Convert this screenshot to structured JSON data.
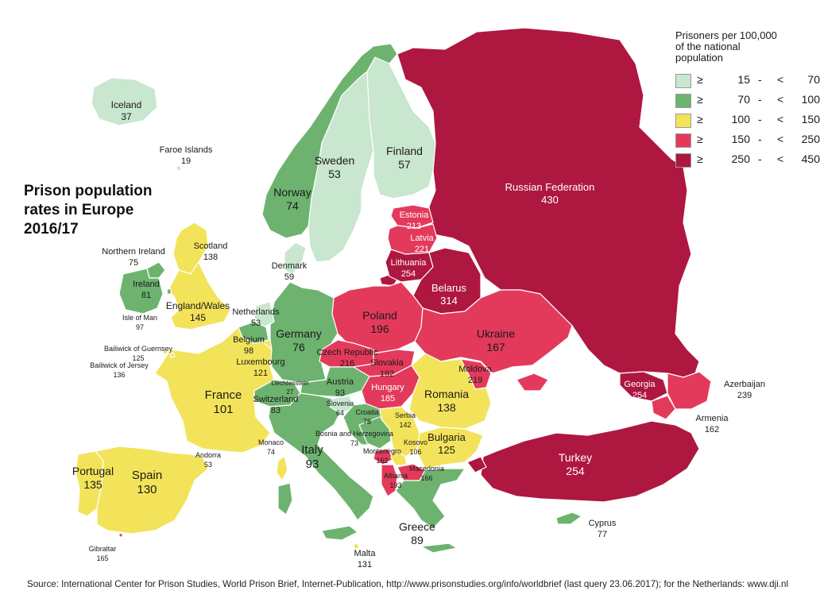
{
  "title_lines": [
    "Prison population",
    "rates in Europe",
    "2016/17"
  ],
  "legend": {
    "heading_lines": [
      "Prisoners per 100,000",
      "of the national",
      "population"
    ],
    "classes": [
      {
        "ge": "≥",
        "low": "15",
        "dash": "-",
        "lt": "<",
        "high": "70",
        "color": "#c9e6cf"
      },
      {
        "ge": "≥",
        "low": "70",
        "dash": "-",
        "lt": "<",
        "high": "100",
        "color": "#6db36f"
      },
      {
        "ge": "≥",
        "low": "100",
        "dash": "-",
        "lt": "<",
        "high": "150",
        "color": "#f3e35a"
      },
      {
        "ge": "≥",
        "low": "150",
        "dash": "-",
        "lt": "<",
        "high": "250",
        "color": "#e33a5b"
      },
      {
        "ge": "≥",
        "low": "250",
        "dash": "-",
        "lt": "<",
        "high": "450",
        "color": "#ae1740"
      }
    ]
  },
  "colors": {
    "c1": "#c9e6cf",
    "c2": "#6db36f",
    "c3": "#f3e35a",
    "c4": "#e33a5b",
    "c5": "#ae1740",
    "water": "#ffffff",
    "border": "#ffffff"
  },
  "countries": [
    {
      "name": "Iceland",
      "value": "37",
      "class": 1
    },
    {
      "name": "Faroe Islands",
      "value": "19",
      "class": 1
    },
    {
      "name": "Sweden",
      "value": "53",
      "class": 1
    },
    {
      "name": "Finland",
      "value": "57",
      "class": 1
    },
    {
      "name": "Norway",
      "value": "74",
      "class": 2
    },
    {
      "name": "Denmark",
      "value": "59",
      "class": 1
    },
    {
      "name": "Russian Federation",
      "value": "430",
      "class": 5
    },
    {
      "name": "Estonia",
      "value": "213",
      "class": 4
    },
    {
      "name": "Latvia",
      "value": "221",
      "class": 4
    },
    {
      "name": "Lithuania",
      "value": "254",
      "class": 5
    },
    {
      "name": "Belarus",
      "value": "314",
      "class": 5
    },
    {
      "name": "Scotland",
      "value": "138",
      "class": 3
    },
    {
      "name": "Northern Ireland",
      "value": "75",
      "class": 2
    },
    {
      "name": "Ireland",
      "value": "81",
      "class": 2
    },
    {
      "name": "England/Wales",
      "value": "145",
      "class": 3
    },
    {
      "name": "Isle of Man",
      "value": "97",
      "class": 2
    },
    {
      "name": "Netherlands",
      "value": "53",
      "class": 1
    },
    {
      "name": "Germany",
      "value": "76",
      "class": 2
    },
    {
      "name": "Poland",
      "value": "196",
      "class": 4
    },
    {
      "name": "Ukraine",
      "value": "167",
      "class": 4
    },
    {
      "name": "Belgium",
      "value": "98",
      "class": 2
    },
    {
      "name": "Bailiwick of Guernsey",
      "value": "125",
      "class": 3
    },
    {
      "name": "Bailiwick of Jersey",
      "value": "136",
      "class": 3
    },
    {
      "name": "Luxembourg",
      "value": "121",
      "class": 3
    },
    {
      "name": "Czech Republic",
      "value": "216",
      "class": 4
    },
    {
      "name": "Slovakia",
      "value": "192",
      "class": 4
    },
    {
      "name": "Moldova",
      "value": "219",
      "class": 4
    },
    {
      "name": "France",
      "value": "101",
      "class": 3
    },
    {
      "name": "Liechtenstein",
      "value": "27",
      "class": 1
    },
    {
      "name": "Austria",
      "value": "93",
      "class": 2
    },
    {
      "name": "Hungary",
      "value": "185",
      "class": 4
    },
    {
      "name": "Romania",
      "value": "138",
      "class": 3
    },
    {
      "name": "Switzerland",
      "value": "83",
      "class": 2
    },
    {
      "name": "Slovenia",
      "value": "64",
      "class": 1
    },
    {
      "name": "Croatia",
      "value": "78",
      "class": 2
    },
    {
      "name": "Serbia",
      "value": "142",
      "class": 3
    },
    {
      "name": "Bosnia and Herzegovina",
      "value": "73",
      "class": 2
    },
    {
      "name": "Kosovo",
      "value": "106",
      "class": 3
    },
    {
      "name": "Montenegro",
      "value": "162",
      "class": 4
    },
    {
      "name": "Bulgaria",
      "value": "125",
      "class": 3
    },
    {
      "name": "Albania",
      "value": "193",
      "class": 4
    },
    {
      "name": "Macedonia",
      "value": "166",
      "class": 4
    },
    {
      "name": "Georgia",
      "value": "254",
      "class": 5
    },
    {
      "name": "Azerbaijan",
      "value": "239",
      "class": 4
    },
    {
      "name": "Armenia",
      "value": "162",
      "class": 4
    },
    {
      "name": "Turkey",
      "value": "254",
      "class": 5
    },
    {
      "name": "Monaco",
      "value": "74",
      "class": 2
    },
    {
      "name": "Andorra",
      "value": "53",
      "class": 1
    },
    {
      "name": "Italy",
      "value": "93",
      "class": 2
    },
    {
      "name": "Portugal",
      "value": "135",
      "class": 3
    },
    {
      "name": "Spain",
      "value": "130",
      "class": 3
    },
    {
      "name": "Greece",
      "value": "89",
      "class": 2
    },
    {
      "name": "Cyprus",
      "value": "77",
      "class": 2
    },
    {
      "name": "Gibraltar",
      "value": "165",
      "class": 4
    },
    {
      "name": "Malta",
      "value": "131",
      "class": 3
    }
  ],
  "source": "Source: International Center for Prison Studies, World Prison Brief, Internet-Publication, http://www.prisonstudies.org/info/worldbrief (last query 23.06.2017); for the Netherlands: www.dji.nl"
}
